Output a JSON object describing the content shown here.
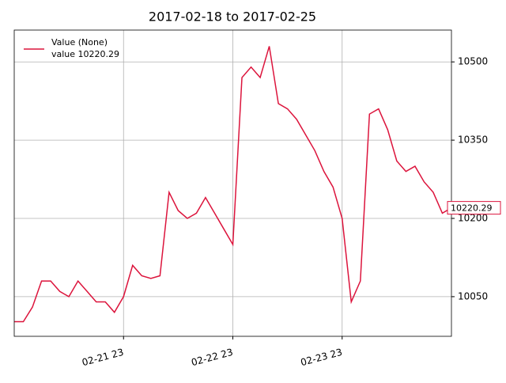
{
  "chart_data": {
    "type": "line",
    "title": "2017-02-18 to 2017-02-25",
    "x": [
      "02-20 23",
      "02-21 01",
      "02-21 03",
      "02-21 05",
      "02-21 07",
      "02-21 09",
      "02-21 11",
      "02-21 13",
      "02-21 15",
      "02-21 17",
      "02-21 19",
      "02-21 21",
      "02-21 23",
      "02-22 01",
      "02-22 03",
      "02-22 05",
      "02-22 07",
      "02-22 09",
      "02-22 11",
      "02-22 13",
      "02-22 15",
      "02-22 17",
      "02-22 19",
      "02-22 21",
      "02-22 23",
      "02-23 01",
      "02-23 03",
      "02-23 05",
      "02-23 07",
      "02-23 09",
      "02-23 11",
      "02-23 13",
      "02-23 15",
      "02-23 17",
      "02-23 19",
      "02-23 21",
      "02-23 23",
      "02-24 01",
      "02-24 03",
      "02-24 05",
      "02-24 07",
      "02-24 09",
      "02-24 11",
      "02-24 13",
      "02-24 15",
      "02-24 17",
      "02-24 19",
      "02-24 21",
      "02-24 23"
    ],
    "series": [
      {
        "name": "Value (None)",
        "color": "#dc143c",
        "values": [
          10002,
          10002,
          10030,
          10080,
          10080,
          10060,
          10050,
          10080,
          10060,
          10040,
          10040,
          10020,
          10050,
          10110,
          10090,
          10085,
          10090,
          10250,
          10215,
          10200,
          10210,
          10240,
          10210,
          10180,
          10150,
          10470,
          10490,
          10470,
          10530,
          10420,
          10410,
          10390,
          10360,
          10330,
          10290,
          10260,
          10200,
          10040,
          10080,
          10400,
          10410,
          10370,
          10310,
          10290,
          10300,
          10270,
          10250,
          10210,
          10220.29
        ]
      }
    ],
    "legend_note": "value 10220.29",
    "last_value_label": "10220.29",
    "xlim": [
      "02-20 23",
      "02-24 23"
    ],
    "xticks": [
      "02-21 23",
      "02-22 23",
      "02-23 23"
    ],
    "ylim": [
      9974,
      10561
    ],
    "yticks": [
      10050,
      10200,
      10350,
      10500
    ],
    "grid": true,
    "legend": "upper left",
    "y_axis_side": "right"
  }
}
